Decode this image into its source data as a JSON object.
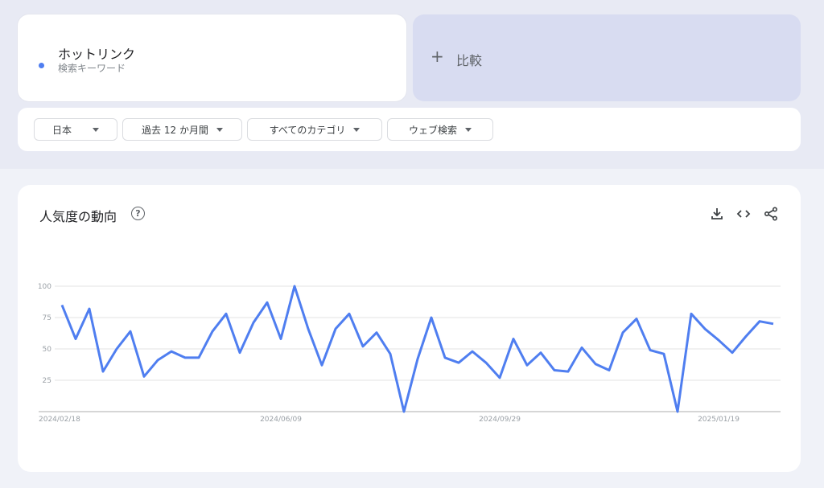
{
  "search_term": {
    "label": "ホットリンク",
    "subtitle": "検索キーワード",
    "color": "#4f7ef0"
  },
  "compare": {
    "label": "比較",
    "icon": "plus-icon"
  },
  "filters": [
    {
      "label": "日本"
    },
    {
      "label": "過去 12 か月間"
    },
    {
      "label": "すべてのカテゴリ"
    },
    {
      "label": "ウェブ検索"
    }
  ],
  "chart_section": {
    "title": "人気度の動向",
    "help_icon": "?",
    "actions": [
      "download-icon",
      "embed-code-icon",
      "share-icon"
    ]
  },
  "chart_data": {
    "type": "line",
    "title": "",
    "xlabel": "",
    "ylabel": "",
    "ylim": [
      0,
      100
    ],
    "yticks": [
      "25",
      "50",
      "75",
      "100"
    ],
    "xtick_labels": [
      {
        "index": 0,
        "label": "2024/02/18"
      },
      {
        "index": 16,
        "label": "2024/06/09"
      },
      {
        "index": 32,
        "label": "2024/09/29"
      },
      {
        "index": 48,
        "label": "2025/01/19"
      }
    ],
    "grid": true,
    "color": "#4f7ef0",
    "values": [
      85,
      58,
      82,
      32,
      50,
      64,
      28,
      41,
      48,
      43,
      43,
      64,
      78,
      47,
      71,
      87,
      58,
      100,
      66,
      37,
      66,
      78,
      52,
      63,
      46,
      0,
      42,
      75,
      43,
      39,
      48,
      39,
      27,
      58,
      37,
      47,
      33,
      32,
      51,
      38,
      33,
      63,
      74,
      49,
      46,
      0,
      78,
      66,
      57,
      47,
      60,
      72,
      70
    ]
  }
}
